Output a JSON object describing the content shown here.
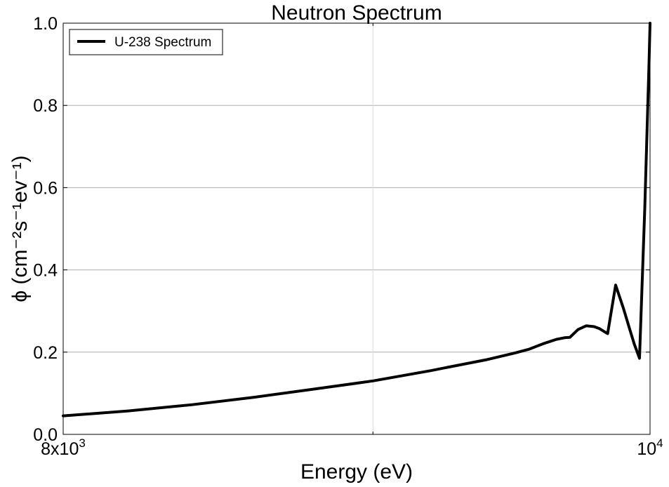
{
  "chart_data": {
    "type": "line",
    "title": "Neutron Spectrum",
    "xlabel": "Energy (eV)",
    "ylabel": "ϕ (cm⁻²s⁻¹ev⁻¹)",
    "xscale": "log",
    "xlim": [
      8000,
      10000
    ],
    "ylim": [
      0.0,
      1.0
    ],
    "x_ticks": [
      {
        "value": 8000,
        "base": "8x10",
        "exp": "3"
      },
      {
        "value": 10000,
        "base": "10",
        "exp": "4"
      }
    ],
    "y_ticks": [
      {
        "value": 0.0,
        "label": "0.0"
      },
      {
        "value": 0.2,
        "label": "0.2"
      },
      {
        "value": 0.4,
        "label": "0.4"
      },
      {
        "value": 0.6,
        "label": "0.6"
      },
      {
        "value": 0.8,
        "label": "0.8"
      },
      {
        "value": 1.0,
        "label": "1.0"
      }
    ],
    "grid": true,
    "legend_position": "top-left",
    "series": [
      {
        "name": "U-238 Spectrum",
        "color": "#000000",
        "x": [
          8000,
          8200,
          8400,
          8600,
          8800,
          9000,
          9200,
          9400,
          9500,
          9550,
          9600,
          9650,
          9680,
          9700,
          9730,
          9760,
          9790,
          9810,
          9840,
          9870,
          9900,
          9920,
          9940,
          9960,
          9980,
          9996,
          10000
        ],
        "y": [
          0.045,
          0.057,
          0.072,
          0.09,
          0.11,
          0.13,
          0.155,
          0.182,
          0.198,
          0.207,
          0.22,
          0.231,
          0.235,
          0.236,
          0.255,
          0.264,
          0.262,
          0.257,
          0.245,
          0.363,
          0.305,
          0.262,
          0.22,
          0.185,
          0.55,
          0.9,
          1.0
        ]
      }
    ]
  }
}
